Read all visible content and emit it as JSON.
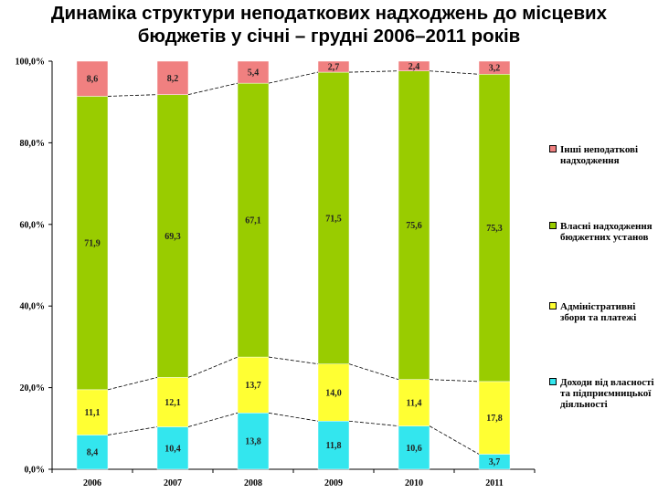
{
  "title_line1": "Динаміка структури неподаткових надходжень до місцевих",
  "title_line2": "бюджетів у січні – грудні 2006–2011 років",
  "chart_data": {
    "type": "bar",
    "stacked": true,
    "percent_stacked": true,
    "categories": [
      "2006",
      "2007",
      "2008",
      "2009",
      "2010",
      "2011"
    ],
    "ylim": [
      0,
      100
    ],
    "y_ticks": [
      "0,0%",
      "20,0%",
      "40,0%",
      "60,0%",
      "80,0%",
      "100,0%"
    ],
    "series": [
      {
        "name": "Доходи від власності та підприємницької діяльності",
        "color": "#33e6ee",
        "values": [
          8.4,
          10.4,
          13.8,
          11.8,
          10.6,
          3.7
        ],
        "labels": [
          "8,4",
          "10,4",
          "13,8",
          "11,8",
          "10,6",
          "3,7"
        ]
      },
      {
        "name": "Адміністративні збори та платежі",
        "color": "#ffff33",
        "values": [
          11.1,
          12.1,
          13.7,
          14.0,
          11.4,
          17.8
        ],
        "labels": [
          "11,1",
          "12,1",
          "13,7",
          "14,0",
          "11,4",
          "17,8"
        ]
      },
      {
        "name": "Власні надходження бюджетних установ",
        "color": "#99cc00",
        "values": [
          71.9,
          69.3,
          67.1,
          71.5,
          75.6,
          75.3
        ],
        "labels": [
          "71,9",
          "69,3",
          "67,1",
          "71,5",
          "75,6",
          "75,3"
        ]
      },
      {
        "name": "Інші неподаткові надходження",
        "color": "#f08080",
        "values": [
          8.6,
          8.2,
          5.4,
          2.7,
          2.4,
          3.2
        ],
        "labels": [
          "8,6",
          "8,2",
          "5,4",
          "2,7",
          "2,4",
          "3,2"
        ]
      }
    ],
    "legend_position": "right",
    "series_lines": true,
    "grid": false
  }
}
